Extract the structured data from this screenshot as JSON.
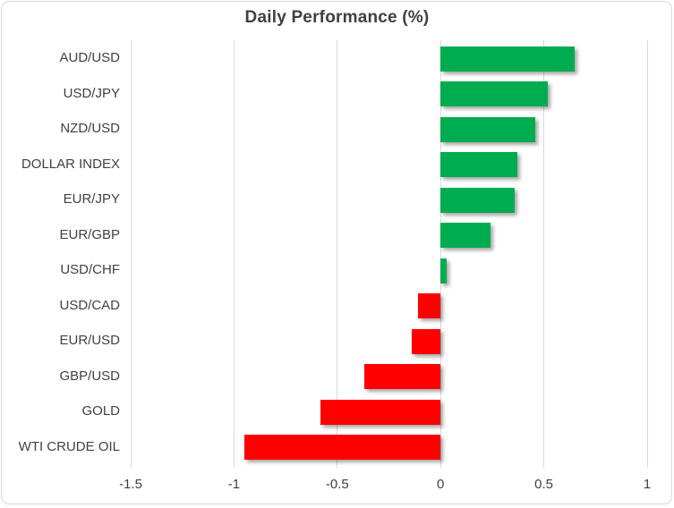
{
  "chart_data": {
    "type": "bar",
    "orientation": "horizontal",
    "title": "Daily Performance (%)",
    "categories": [
      "AUD/USD",
      "USD/JPY",
      "NZD/USD",
      "DOLLAR INDEX",
      "EUR/JPY",
      "EUR/GBP",
      "USD/CHF",
      "USD/CAD",
      "EUR/USD",
      "GBP/USD",
      "GOLD",
      "WTI CRUDE OIL"
    ],
    "values": [
      0.65,
      0.52,
      0.46,
      0.37,
      0.36,
      0.24,
      0.03,
      -0.11,
      -0.14,
      -0.37,
      -0.58,
      -0.95
    ],
    "xlim": [
      -1.5,
      1
    ],
    "x_ticks": [
      -1.5,
      -1,
      -0.5,
      0,
      0.5,
      1
    ],
    "x_tick_labels": [
      "-1.5",
      "-1",
      "-0.5",
      "0",
      "0.5",
      "1"
    ],
    "grid": true,
    "legend": false,
    "colors": {
      "positive": "#00AC50",
      "negative": "#FF0000",
      "gridline": "#D9D9D9",
      "axis_text": "#404040",
      "title_text": "#404040",
      "border": "#D9D9D9",
      "background": "#FFFFFF"
    }
  }
}
